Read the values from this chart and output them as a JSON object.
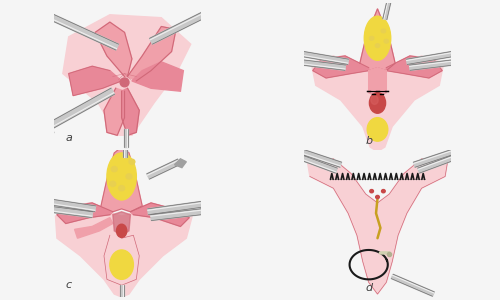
{
  "background_color": "#f5f5f5",
  "panel_labels": [
    "a",
    "b",
    "c",
    "d"
  ],
  "tissue_pink": "#f0a0aa",
  "tissue_pink2": "#e88898",
  "tissue_pink_dark": "#d06878",
  "tissue_pink_light": "#f8d0d4",
  "tissue_light": "#f5c0c8",
  "yellow_fat": "#f0d840",
  "yellow_fat2": "#e8d050",
  "node_red": "#c84848",
  "node_dark": "#a03030",
  "instrument_color": "#c8c8c8",
  "instrument_mid": "#a0a0a0",
  "instrument_dark": "#707070",
  "suture_color": "#202020",
  "label_color": "#404040",
  "label_fontsize": 8
}
